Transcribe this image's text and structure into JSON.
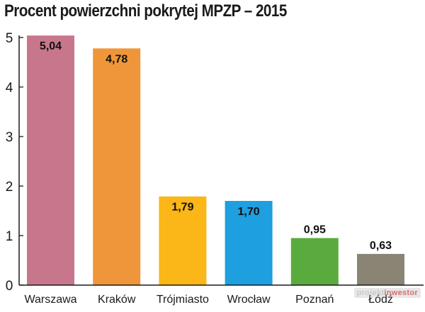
{
  "chart_data": {
    "type": "bar",
    "title": "Procent powierzchni pokrytej MPZP – 2015",
    "categories": [
      "Warszawa",
      "Kraków",
      "Trójmiasto",
      "Wrocław",
      "Poznań",
      "Łódź"
    ],
    "values": [
      5.04,
      4.78,
      1.79,
      1.7,
      0.95,
      0.63
    ],
    "value_labels": [
      "5,04",
      "4,78",
      "1,79",
      "1,70",
      "0,95",
      "0,63"
    ],
    "colors": [
      "#c8768c",
      "#f0963a",
      "#fbb617",
      "#1d9fe0",
      "#5aab3d",
      "#8a8474"
    ],
    "yticks": [
      "0",
      "1",
      "2",
      "3",
      "4",
      "5"
    ],
    "ylim": [
      0,
      5
    ],
    "grid": false
  },
  "watermark": {
    "part1": "projekt",
    "part2": "inwestor"
  }
}
